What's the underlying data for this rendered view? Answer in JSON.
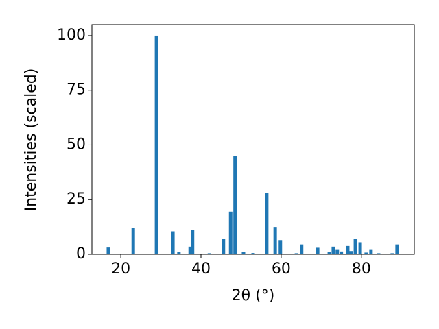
{
  "chart_data": {
    "type": "bar",
    "x_label": "2θ (°)",
    "y_label": "Intensities (scaled)",
    "color": "#1f77b4",
    "x": [
      16.9,
      23.1,
      28.9,
      33.0,
      34.5,
      37.3,
      37.9,
      42.1,
      45.6,
      47.4,
      48.5,
      50.6,
      53.0,
      56.4,
      58.5,
      59.8,
      62.1,
      63.8,
      65.1,
      67.9,
      69.1,
      72.0,
      73.0,
      74.0,
      75.0,
      76.6,
      77.4,
      78.5,
      79.7,
      81.2,
      82.4,
      84.3,
      87.7,
      88.9
    ],
    "values": [
      3.1,
      12,
      100,
      10.5,
      1.2,
      3.5,
      11,
      0.5,
      7,
      19.5,
      45,
      1.2,
      0.6,
      28,
      12.5,
      6.5,
      0.3,
      0.5,
      4.5,
      0.3,
      3,
      1,
      3.5,
      2,
      1.3,
      3.8,
      1.5,
      7,
      5.5,
      0.8,
      2,
      0.5,
      0.5,
      4.5
    ],
    "xlim": [
      12.8,
      93.2
    ],
    "ylim": [
      0,
      105
    ],
    "xticks": [
      20,
      40,
      60,
      80
    ],
    "yticks": [
      0,
      25,
      50,
      75,
      100
    ]
  }
}
